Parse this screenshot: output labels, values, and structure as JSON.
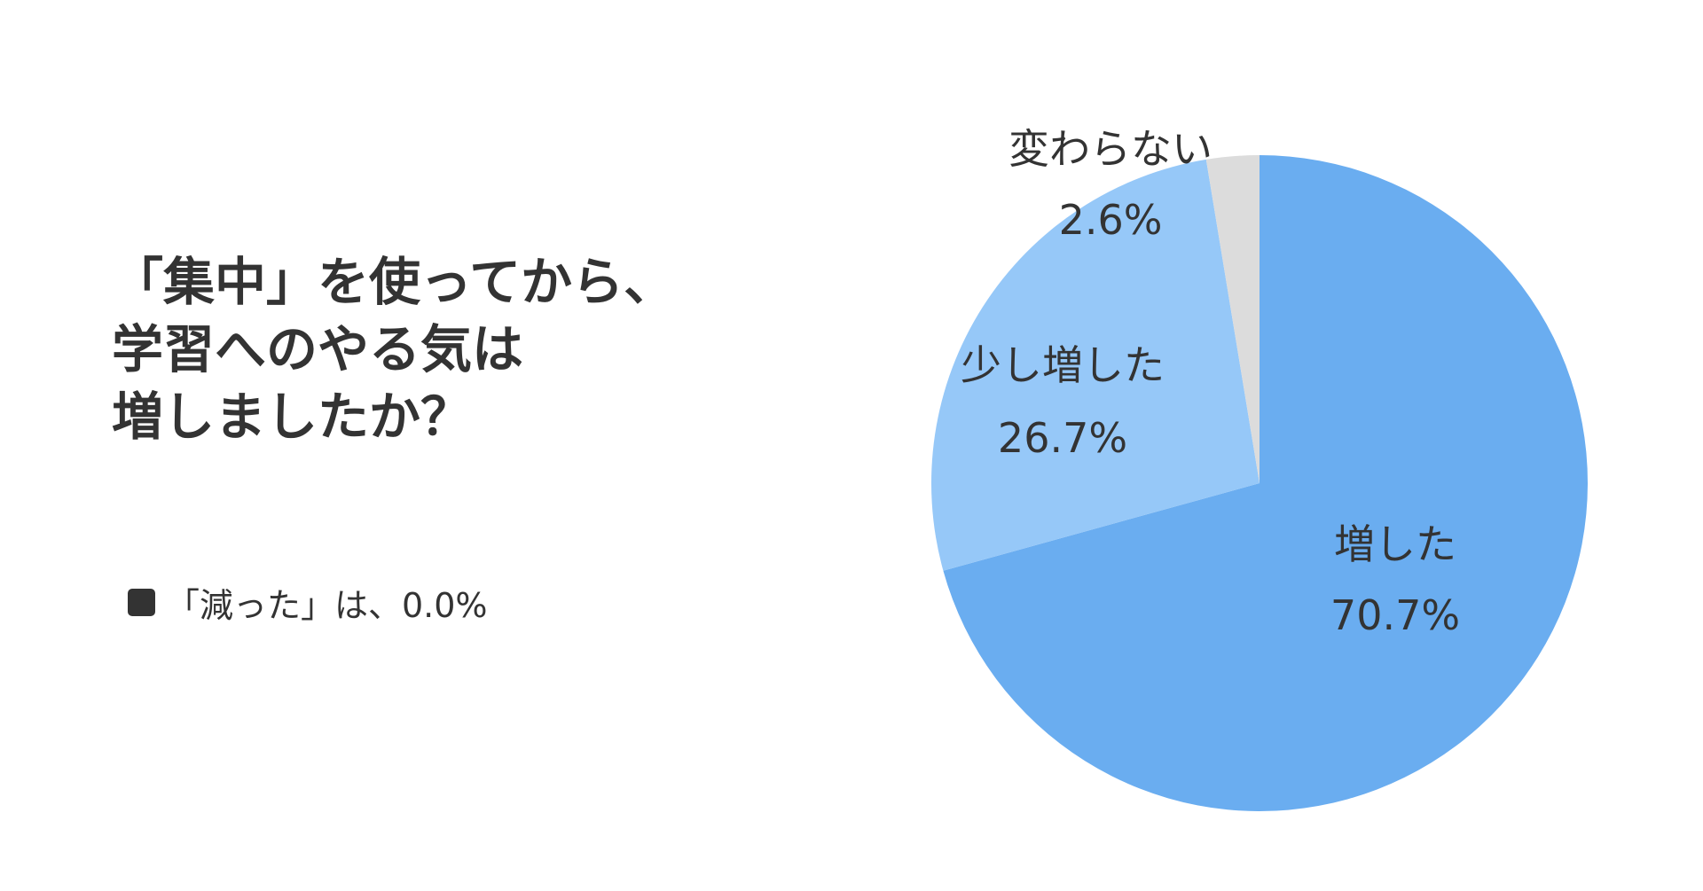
{
  "title": {
    "lines": [
      "「集中」を使ってから、",
      "学習へのやる気は",
      "増しましたか？"
    ]
  },
  "note": "「減った」は、0.0%",
  "colors": {
    "text": "#333333",
    "note_swatch": "#333333"
  },
  "chart_data": {
    "type": "pie",
    "title": "「集中」を使ってから、学習へのやる気は増しましたか？",
    "start": "12 o'clock, clockwise",
    "legend": "none (labels on/beside slices)",
    "slices": [
      {
        "label": "増した",
        "value": 70.7,
        "value_label": "70.7%",
        "color": "#6aadf0"
      },
      {
        "label": "少し増した",
        "value": 26.7,
        "value_label": "26.7%",
        "color": "#96c8f8"
      },
      {
        "label": "変わらない",
        "value": 2.6,
        "value_label": "2.6%",
        "color": "#dcdcdc"
      }
    ]
  }
}
